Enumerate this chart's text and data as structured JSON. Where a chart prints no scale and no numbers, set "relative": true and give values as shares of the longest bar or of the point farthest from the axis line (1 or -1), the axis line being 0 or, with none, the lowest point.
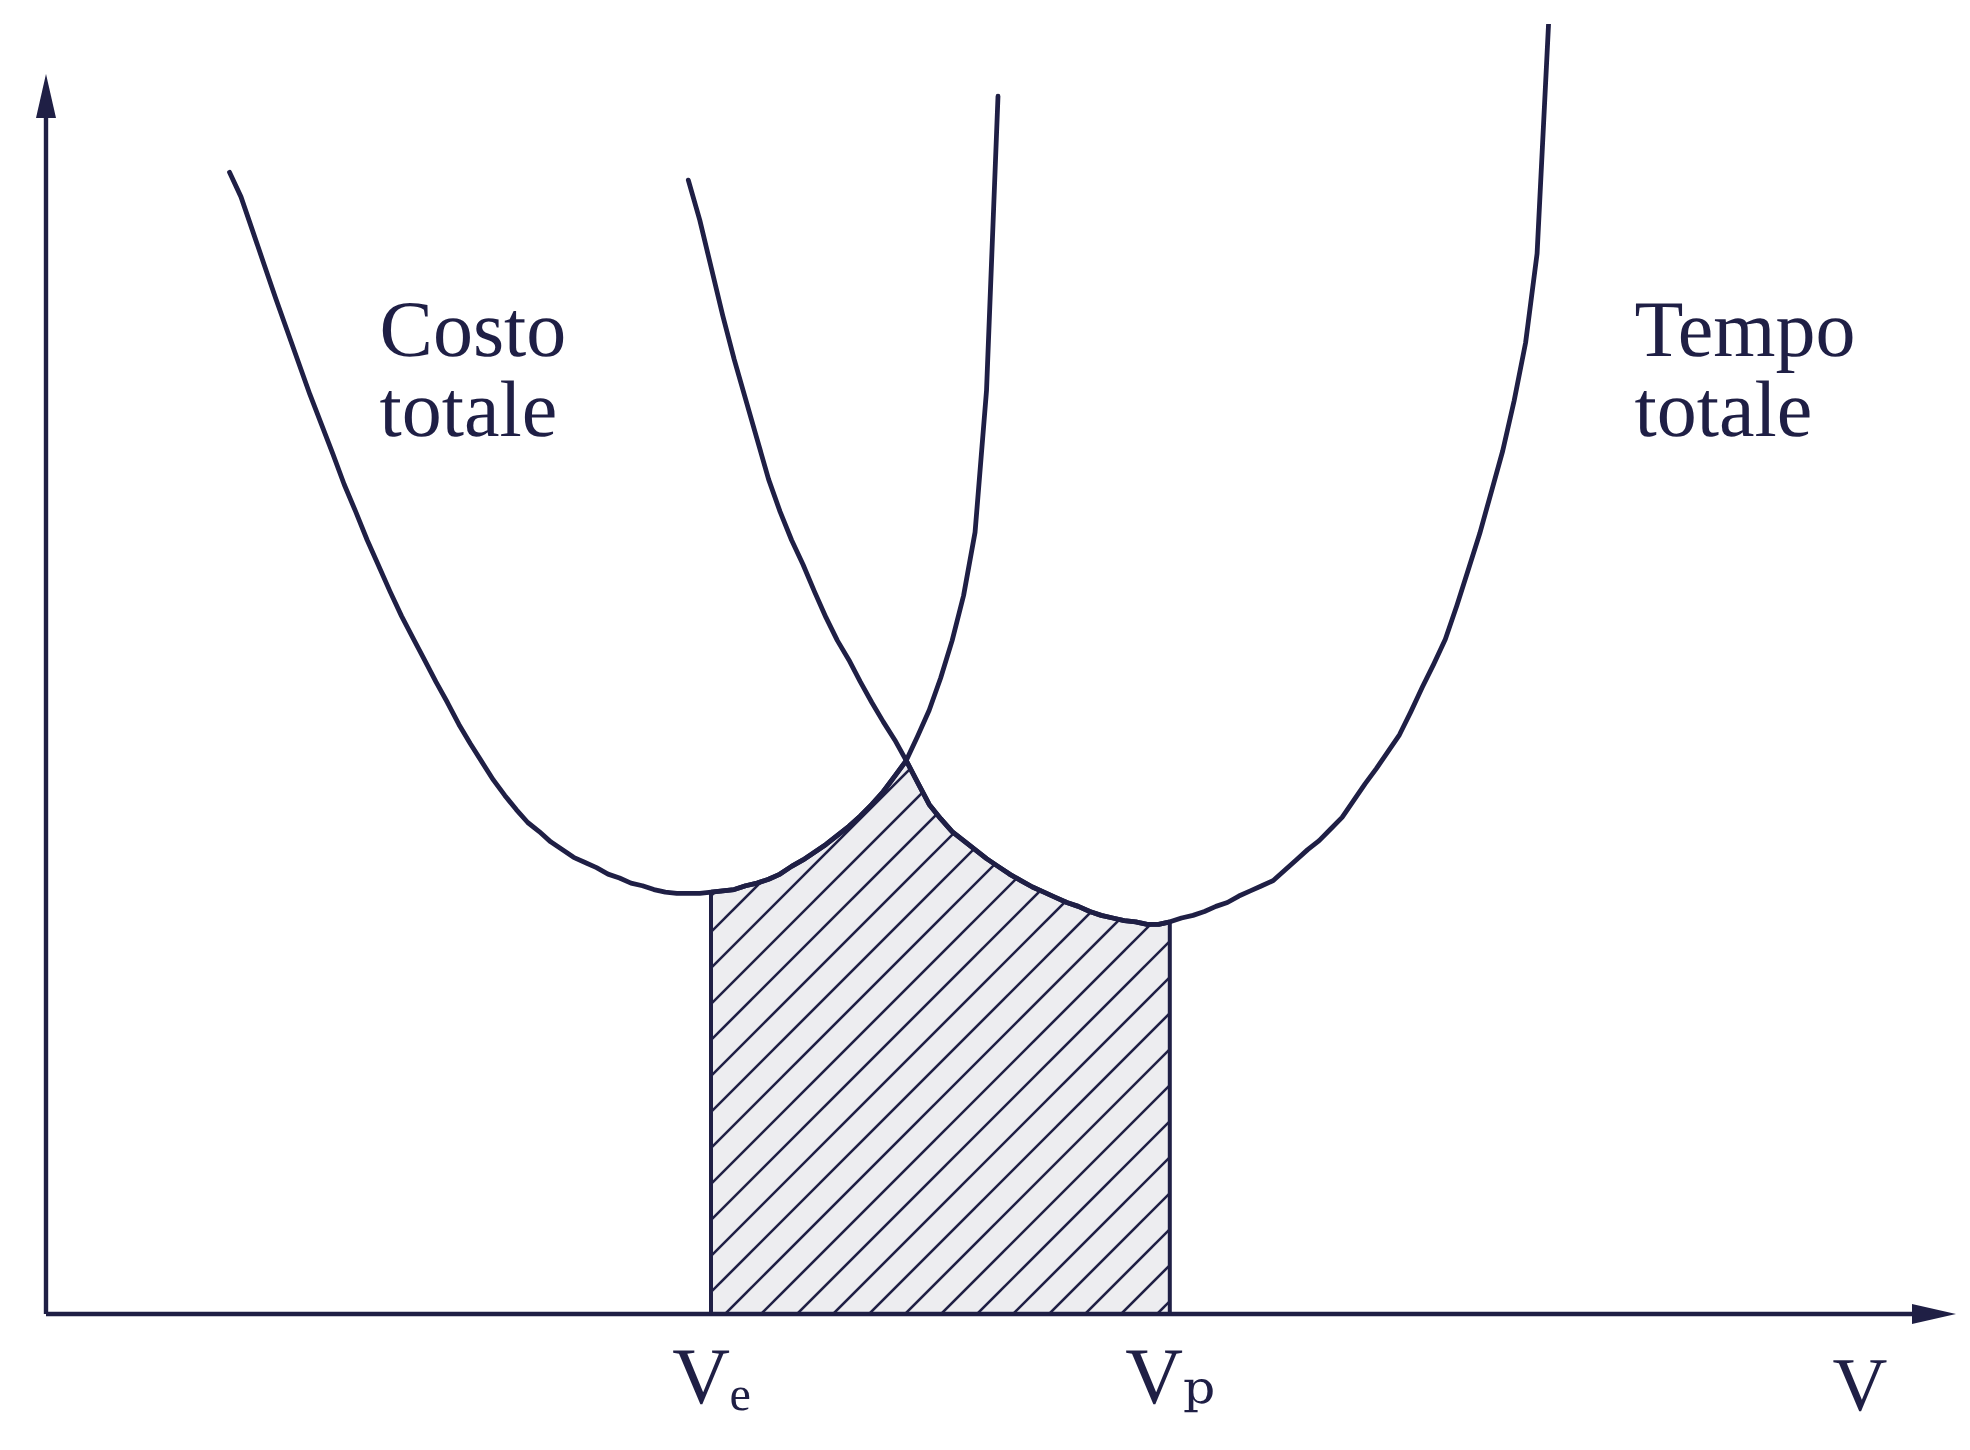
{
  "chart_data": {
    "type": "line",
    "relative": true,
    "xlabel": "V",
    "categories": [
      null,
      null,
      null,
      null,
      null,
      null,
      null,
      null,
      null,
      null,
      null,
      null,
      null,
      null,
      null,
      null,
      null,
      null,
      null,
      null,
      null,
      null,
      null,
      null,
      null,
      null,
      null,
      null,
      null,
      null,
      null,
      null,
      null,
      null,
      null,
      null,
      null,
      null,
      null,
      null,
      null,
      null,
      null,
      null,
      null,
      null,
      null,
      null,
      null,
      null,
      null,
      null,
      null,
      null,
      null,
      null,
      null,
      null,
      "Vₑ",
      null,
      null,
      null,
      null,
      null,
      null,
      null,
      null,
      null,
      null,
      null,
      null,
      null,
      null,
      null,
      null,
      null,
      null,
      null,
      null,
      null,
      null,
      null,
      null,
      null,
      null,
      null,
      null,
      null,
      null,
      null,
      null,
      null,
      null,
      null,
      null,
      null,
      null,
      null,
      "Vₚ",
      null,
      null,
      null,
      null,
      null,
      null,
      null,
      null,
      null,
      null,
      null,
      null,
      null,
      null,
      null,
      null,
      null,
      null,
      null,
      null,
      null,
      null,
      null,
      null,
      null,
      null,
      null,
      null,
      null,
      null,
      null,
      null,
      null,
      null,
      null,
      null,
      null,
      null,
      null,
      null,
      null,
      null,
      null,
      null,
      null,
      null,
      null,
      null,
      null,
      null,
      null,
      null,
      null,
      null,
      null,
      null,
      null,
      null,
      null,
      null,
      null,
      null,
      null,
      null,
      null,
      null,
      null,
      null
    ],
    "series": [
      {
        "name": "Costo totale",
        "type": "line",
        "color": "#1f1f45",
        "values": [
          null,
          null,
          null,
          null,
          null,
          null,
          null,
          null,
          null,
          null,
          null,
          null,
          null,
          null,
          null,
          null,
          0.885,
          0.866,
          0.84,
          0.814,
          0.788,
          0.763,
          0.738,
          0.713,
          0.69,
          0.667,
          0.643,
          0.622,
          0.6,
          0.58,
          0.56,
          0.541,
          0.524,
          0.507,
          0.49,
          0.474,
          0.457,
          0.442,
          0.428,
          0.414,
          0.402,
          0.391,
          0.381,
          0.374,
          0.366,
          0.36,
          0.354,
          0.35,
          0.346,
          0.341,
          0.338,
          0.334,
          0.332,
          0.329,
          0.327,
          0.326,
          0.326,
          0.326,
          0.327,
          0.328,
          0.329,
          0.332,
          0.334,
          0.337,
          0.341,
          0.347,
          0.352,
          0.358,
          0.364,
          0.371,
          0.378,
          0.386,
          0.395,
          0.405,
          0.417,
          0.429,
          0.448,
          0.468,
          0.493,
          0.522,
          0.557,
          0.606,
          0.716,
          0.944,
          null,
          null,
          null,
          null,
          null,
          null,
          null,
          null,
          null,
          null,
          null,
          null,
          null,
          null,
          null,
          null,
          null,
          null,
          null,
          null,
          null,
          null,
          null,
          null,
          null,
          null,
          null,
          null,
          null,
          null,
          null,
          null,
          null,
          null,
          null,
          null,
          null,
          null,
          null,
          null,
          null,
          null,
          null,
          null,
          null,
          null,
          null,
          null,
          null,
          null,
          null,
          null,
          null,
          null,
          null,
          null,
          null,
          null,
          null,
          null,
          null,
          null,
          null,
          null,
          null,
          null,
          null,
          null,
          null,
          null,
          null,
          null,
          null,
          null,
          null,
          null,
          null,
          null,
          null,
          null,
          null,
          null,
          null
        ]
      },
      {
        "name": "Tempo totale",
        "type": "line",
        "color": "#1f1f45",
        "values": [
          null,
          null,
          null,
          null,
          null,
          null,
          null,
          null,
          null,
          null,
          null,
          null,
          null,
          null,
          null,
          null,
          null,
          null,
          null,
          null,
          null,
          null,
          null,
          null,
          null,
          null,
          null,
          null,
          null,
          null,
          null,
          null,
          null,
          null,
          null,
          null,
          null,
          null,
          null,
          null,
          null,
          null,
          null,
          null,
          null,
          null,
          null,
          null,
          null,
          null,
          null,
          null,
          null,
          null,
          null,
          null,
          0.879,
          0.848,
          0.811,
          0.774,
          0.74,
          0.709,
          0.678,
          0.647,
          0.622,
          0.6,
          0.581,
          0.56,
          0.54,
          0.522,
          0.507,
          0.49,
          0.474,
          0.459,
          0.445,
          0.429,
          0.412,
          0.395,
          0.384,
          0.374,
          0.367,
          0.36,
          0.353,
          0.347,
          0.341,
          0.336,
          0.331,
          0.327,
          0.323,
          0.319,
          0.316,
          0.312,
          0.309,
          0.307,
          0.305,
          0.304,
          0.302,
          0.302,
          0.304,
          0.307,
          0.309,
          0.312,
          0.316,
          0.319,
          0.324,
          0.328,
          0.332,
          0.336,
          0.344,
          0.352,
          0.36,
          0.367,
          0.376,
          0.385,
          0.398,
          0.411,
          0.423,
          0.436,
          0.449,
          0.467,
          0.486,
          0.504,
          0.523,
          0.549,
          0.577,
          0.605,
          0.637,
          0.669,
          0.708,
          0.753,
          0.822,
          1.0,
          null,
          null,
          null,
          null,
          null,
          null,
          null,
          null,
          null,
          null,
          null,
          null,
          null,
          null,
          null,
          null,
          null,
          null,
          null,
          null,
          null,
          null,
          null,
          null,
          null,
          null,
          null,
          null,
          null,
          null,
          null,
          null,
          null,
          null,
          null
        ]
      },
      {
        "type": "area",
        "color": "#1f1f45",
        "values": [
          null,
          null,
          null,
          null,
          null,
          null,
          null,
          null,
          null,
          null,
          null,
          null,
          null,
          null,
          null,
          null,
          null,
          null,
          null,
          null,
          null,
          null,
          null,
          null,
          null,
          null,
          null,
          null,
          null,
          null,
          null,
          null,
          null,
          null,
          null,
          null,
          null,
          null,
          null,
          null,
          null,
          null,
          null,
          null,
          null,
          null,
          null,
          null,
          null,
          null,
          null,
          null,
          null,
          null,
          null,
          null,
          null,
          null,
          0.327,
          0.328,
          0.329,
          0.332,
          0.334,
          0.337,
          0.341,
          0.347,
          0.352,
          0.358,
          0.364,
          0.371,
          0.378,
          0.386,
          0.395,
          0.405,
          0.417,
          0.429,
          0.412,
          0.395,
          0.384,
          0.374,
          0.367,
          0.36,
          0.353,
          0.347,
          0.341,
          0.336,
          0.331,
          0.327,
          0.323,
          0.319,
          0.316,
          0.312,
          0.309,
          0.307,
          0.305,
          0.304,
          0.302,
          0.302,
          0.304,
          null,
          null,
          null,
          null,
          null,
          null,
          null,
          null,
          null,
          null,
          null,
          null,
          null,
          null,
          null,
          null,
          null,
          null,
          null,
          null,
          null,
          null,
          null,
          null,
          null,
          null,
          null,
          null,
          null,
          null,
          null,
          null,
          null,
          null,
          null,
          null,
          null,
          null,
          null,
          null,
          null,
          null,
          null,
          null,
          null,
          null,
          null,
          null,
          null,
          null,
          null,
          null,
          null,
          null,
          null,
          null,
          null,
          null,
          null,
          null,
          null,
          null,
          null,
          null,
          null,
          null,
          null,
          null
        ]
      }
    ]
  }
}
